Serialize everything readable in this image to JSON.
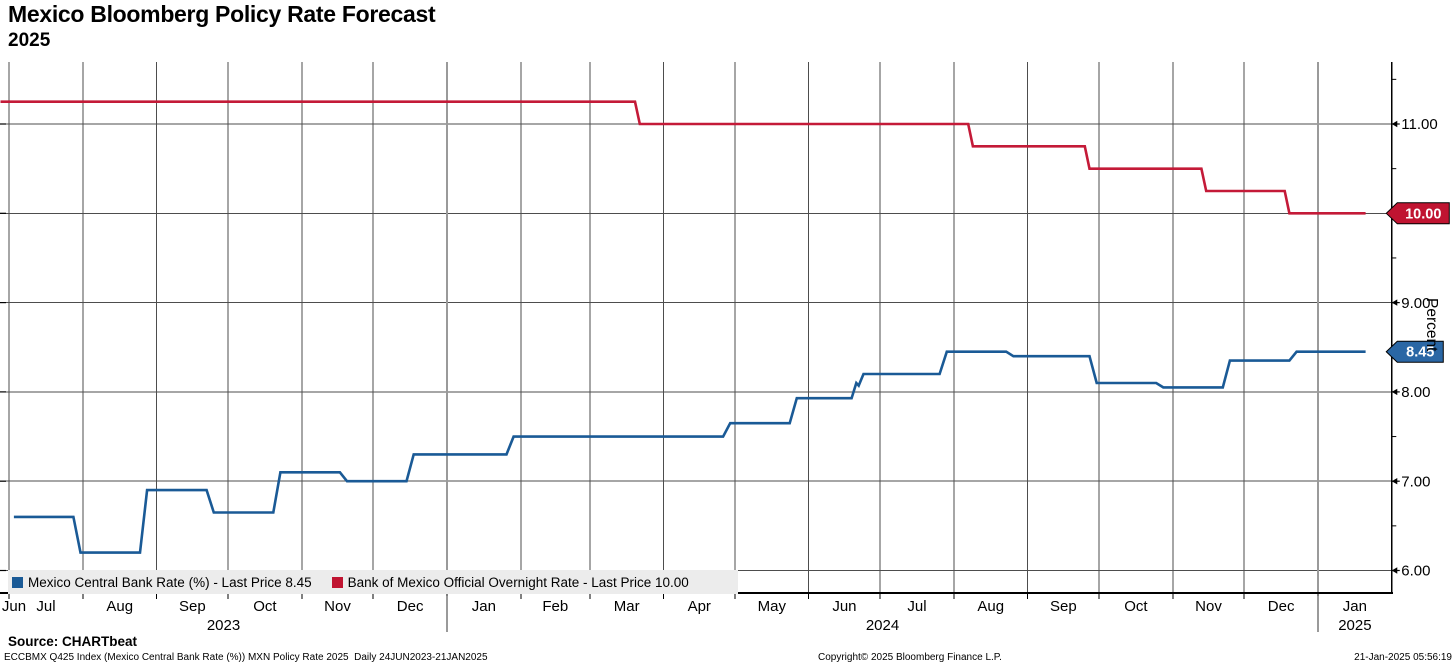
{
  "header": {
    "title": "Mexico Bloomberg Policy Rate Forecast",
    "subtitle": "2025"
  },
  "chart_data": {
    "type": "line",
    "line_style": "step",
    "title": "Mexico Bloomberg Policy Rate Forecast 2025",
    "ylabel": "Percent",
    "x_range": [
      "2023-06-24",
      "2025-02-01"
    ],
    "ylim": [
      5.75,
      11.7
    ],
    "grid": true,
    "y_major_ticks": [
      6,
      7,
      8,
      9,
      10,
      11
    ],
    "y_minor_ticks": [
      6.5,
      7.5,
      8.5,
      9.5,
      10.5,
      11.5
    ],
    "x_month_labels": [
      "Jun",
      "Jul",
      "Aug",
      "Sep",
      "Oct",
      "Nov",
      "Dec",
      "Jan",
      "Feb",
      "Mar",
      "Apr",
      "May",
      "Jun",
      "Jul",
      "Aug",
      "Sep",
      "Oct",
      "Nov",
      "Dec",
      "Jan"
    ],
    "x_year_labels": [
      {
        "label": "2023",
        "span": [
          "2023-06-24",
          "2024-01-01"
        ]
      },
      {
        "label": "2024",
        "span": [
          "2024-01-01",
          "2025-01-01"
        ]
      },
      {
        "label": "2025",
        "span": [
          "2025-01-01",
          "2025-02-01"
        ]
      }
    ],
    "year_boundaries": [
      "2024-01-01",
      "2025-01-01"
    ],
    "series": [
      {
        "name": "Mexico Central Bank Rate (%)",
        "last_price": "8.45",
        "color": "#1a5a96",
        "badge_color": "#2a67a5",
        "points": [
          [
            "2023-07-03",
            6.6
          ],
          [
            "2023-07-28",
            6.6
          ],
          [
            "2023-07-31",
            6.2
          ],
          [
            "2023-08-25",
            6.2
          ],
          [
            "2023-08-28",
            6.9
          ],
          [
            "2023-09-22",
            6.9
          ],
          [
            "2023-09-25",
            6.65
          ],
          [
            "2023-10-20",
            6.65
          ],
          [
            "2023-10-23",
            7.1
          ],
          [
            "2023-11-17",
            7.1
          ],
          [
            "2023-11-20",
            7.0
          ],
          [
            "2023-12-15",
            7.0
          ],
          [
            "2023-12-18",
            7.3
          ],
          [
            "2024-01-26",
            7.3
          ],
          [
            "2024-01-29",
            7.5
          ],
          [
            "2024-04-26",
            7.5
          ],
          [
            "2024-04-29",
            7.65
          ],
          [
            "2024-05-24",
            7.65
          ],
          [
            "2024-05-27",
            7.93
          ],
          [
            "2024-06-19",
            7.93
          ],
          [
            "2024-06-21",
            8.1
          ],
          [
            "2024-06-22",
            8.07
          ],
          [
            "2024-06-24",
            8.2
          ],
          [
            "2024-07-26",
            8.2
          ],
          [
            "2024-07-29",
            8.45
          ],
          [
            "2024-08-23",
            8.45
          ],
          [
            "2024-08-26",
            8.4
          ],
          [
            "2024-09-27",
            8.4
          ],
          [
            "2024-09-30",
            8.1
          ],
          [
            "2024-10-25",
            8.1
          ],
          [
            "2024-10-28",
            8.05
          ],
          [
            "2024-11-22",
            8.05
          ],
          [
            "2024-11-25",
            8.35
          ],
          [
            "2024-12-20",
            8.35
          ],
          [
            "2024-12-23",
            8.45
          ],
          [
            "2025-01-21",
            8.45
          ]
        ]
      },
      {
        "name": "Bank of Mexico Official Overnight Rate",
        "last_price": "10.00",
        "color": "#c41a38",
        "badge_color": "#c01431",
        "points": [
          [
            "2023-06-24",
            11.25
          ],
          [
            "2024-03-20",
            11.25
          ],
          [
            "2024-03-22",
            11.0
          ],
          [
            "2024-08-07",
            11.0
          ],
          [
            "2024-08-09",
            10.75
          ],
          [
            "2024-09-25",
            10.75
          ],
          [
            "2024-09-27",
            10.5
          ],
          [
            "2024-11-13",
            10.5
          ],
          [
            "2024-11-15",
            10.25
          ],
          [
            "2024-12-18",
            10.25
          ],
          [
            "2024-12-20",
            10.0
          ],
          [
            "2025-01-21",
            10.0
          ]
        ]
      }
    ]
  },
  "legend": {
    "items": [
      {
        "label": "Mexico Central Bank Rate (%) - Last Price 8.45",
        "color": "#1a5a96"
      },
      {
        "label": "Bank of Mexico Official Overnight Rate - Last Price 10.00",
        "color": "#c01431"
      }
    ]
  },
  "footer": {
    "source": "Source: CHARTbeat",
    "meta": "ECCBMX Q425 Index (Mexico Central Bank Rate (%)) MXN Policy Rate 2025  Daily 24JUN2023-21JAN2025",
    "copyright": "Copyright© 2025 Bloomberg Finance L.P.",
    "timestamp": "21-Jan-2025 05:56:19"
  },
  "colors": {
    "grid": "#4d4d4d",
    "year_line": "#9a9a9a",
    "axis": "#000000",
    "legend_bg": "#ececec"
  }
}
